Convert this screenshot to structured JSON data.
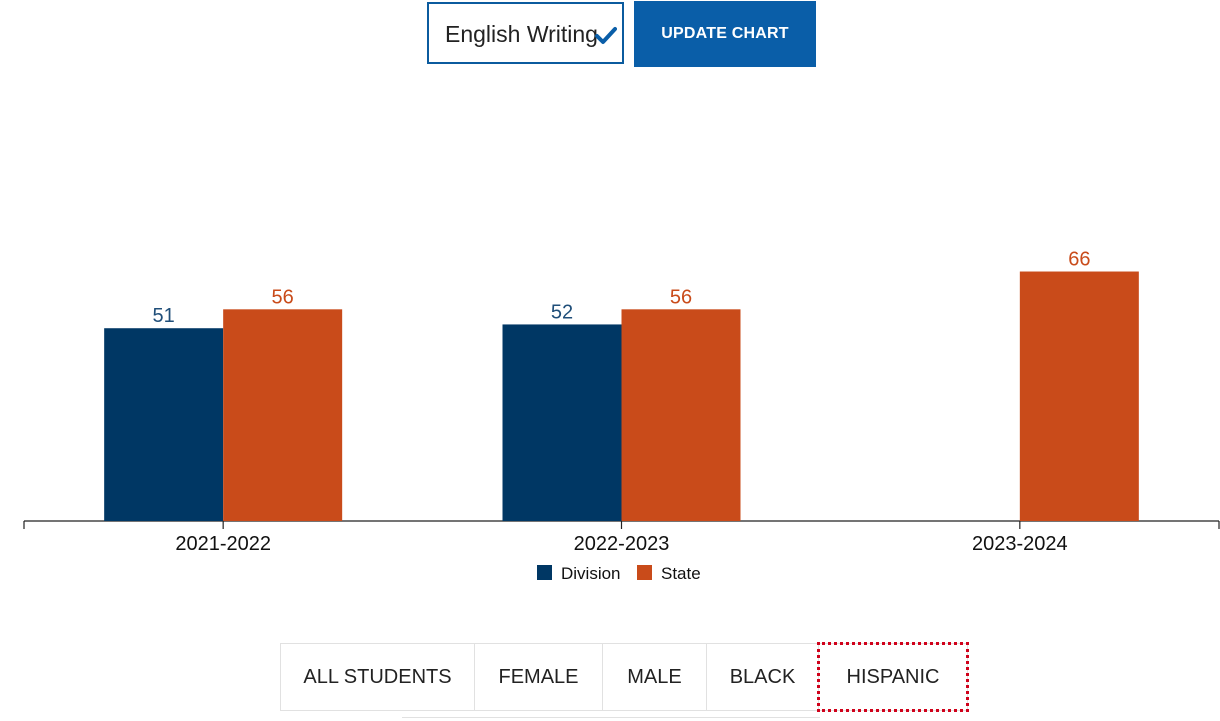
{
  "controls": {
    "subject_value": "English Writing",
    "update_button_label": "UPDATE CHART"
  },
  "colors": {
    "division": "#003764",
    "state": "#c94b1a",
    "accent": "#0a5ea8"
  },
  "chart_data": {
    "type": "bar",
    "categories": [
      "2021-2022",
      "2022-2023",
      "2023-2024"
    ],
    "series": [
      {
        "name": "Division",
        "values": [
          51,
          52,
          null
        ]
      },
      {
        "name": "State",
        "values": [
          56,
          56,
          66
        ]
      }
    ],
    "ylim": [
      0,
      100
    ],
    "grid": false,
    "legend_position": "bottom"
  },
  "tabs": [
    {
      "label": "ALL STUDENTS",
      "focused": false
    },
    {
      "label": "FEMALE",
      "focused": false
    },
    {
      "label": "MALE",
      "focused": false
    },
    {
      "label": "BLACK",
      "focused": false
    },
    {
      "label": "HISPANIC",
      "focused": true
    }
  ]
}
